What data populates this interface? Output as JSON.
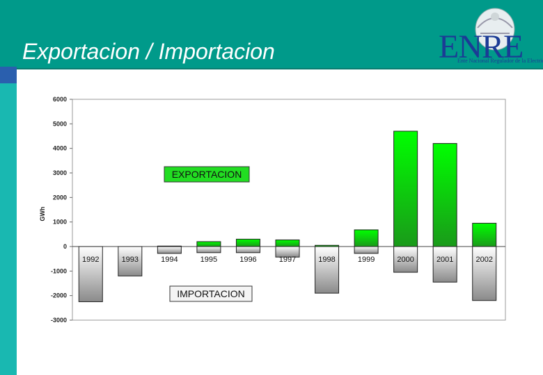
{
  "slide": {
    "title": "Exportacion / Importacion",
    "logo": {
      "name": "ENRE",
      "subtitle": "Ente Nacional Regulador de la Electricidad"
    }
  },
  "colors": {
    "header": "#009a8a",
    "export_bar_top": "#00ff00",
    "export_bar_bottom": "#1a9a1a",
    "import_bar_top": "#ffffff",
    "import_bar_bottom": "#8a8a8a"
  },
  "chart_data": {
    "type": "bar",
    "ylabel": "GWh",
    "ylim": [
      -3000,
      6000
    ],
    "yticks": [
      6000,
      5000,
      4000,
      3000,
      2000,
      1000,
      0,
      -1000,
      -2000,
      -3000
    ],
    "categories": [
      "1992",
      "1993",
      "1994",
      "1995",
      "1996",
      "1997",
      "1998",
      "1999",
      "2000",
      "2001",
      "2002"
    ],
    "series": [
      {
        "name": "EXPORTACION",
        "values": [
          0,
          0,
          20,
          200,
          300,
          270,
          50,
          680,
          4700,
          4200,
          950
        ]
      },
      {
        "name": "IMPORTACION",
        "values": [
          -2250,
          -1200,
          -280,
          -250,
          -250,
          -430,
          -1900,
          -280,
          -1050,
          -1450,
          -2200
        ]
      }
    ],
    "grid": false
  }
}
